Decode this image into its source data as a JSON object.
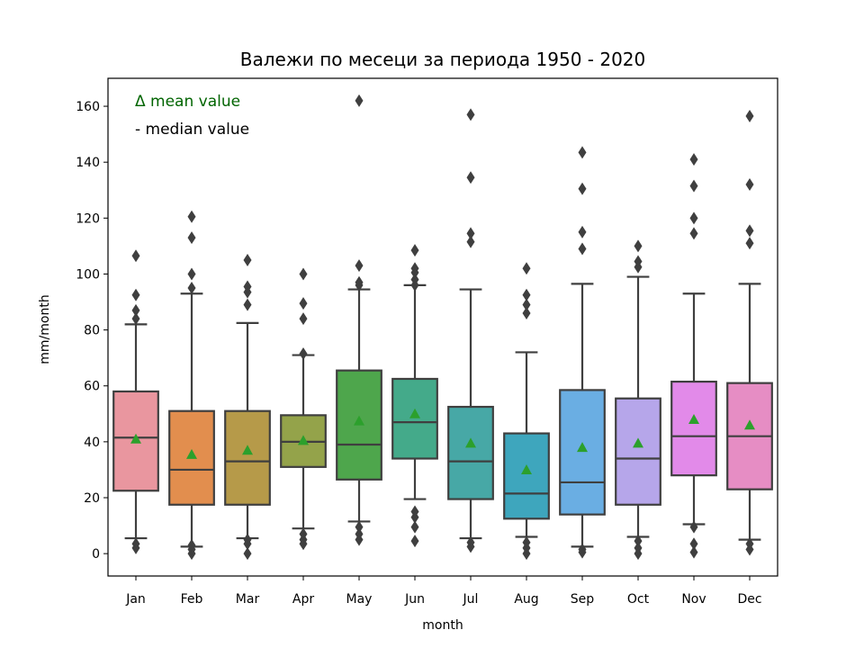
{
  "chart_data": {
    "type": "boxplot",
    "title": "Валежи по месеци за периода 1950 - 2020",
    "xlabel": "month",
    "ylabel": "mm/month",
    "ylim": [
      -8,
      170
    ],
    "yticks": [
      0,
      20,
      40,
      60,
      80,
      100,
      120,
      140,
      160
    ],
    "grid": false,
    "categories": [
      "Jan",
      "Feb",
      "Mar",
      "Apr",
      "May",
      "Jun",
      "Jul",
      "Aug",
      "Sep",
      "Oct",
      "Nov",
      "Dec"
    ],
    "box_colors": [
      "#e9969f",
      "#e28e4e",
      "#b69a49",
      "#94a34a",
      "#4ea64c",
      "#44aa8a",
      "#47a8a6",
      "#3ea6bd",
      "#6aaee3",
      "#b6a6ea",
      "#e28ae9",
      "#e68dc4"
    ],
    "mean_color": "#2ca02c",
    "line_color": "#3f3f3f",
    "boxes": [
      {
        "q1": 22.5,
        "median": 41.5,
        "q3": 58,
        "whisker_low": 5.5,
        "whisker_high": 82,
        "mean": 41,
        "outliers": [
          2,
          3.5,
          84,
          87,
          92.5,
          106.5
        ]
      },
      {
        "q1": 17.5,
        "median": 30,
        "q3": 51,
        "whisker_low": 2.5,
        "whisker_high": 93,
        "mean": 35.5,
        "outliers": [
          0,
          1.5,
          3,
          95,
          100,
          113,
          120.5
        ]
      },
      {
        "q1": 17.5,
        "median": 33,
        "q3": 51,
        "whisker_low": 5.5,
        "whisker_high": 82.5,
        "mean": 37,
        "outliers": [
          0,
          3.5,
          5,
          89,
          93.5,
          95.5,
          105
        ]
      },
      {
        "q1": 31,
        "median": 40,
        "q3": 49.5,
        "whisker_low": 9,
        "whisker_high": 71,
        "mean": 40.5,
        "outliers": [
          3.5,
          5,
          7,
          71.5,
          84,
          89.5,
          100
        ]
      },
      {
        "q1": 26.5,
        "median": 39,
        "q3": 65.5,
        "whisker_low": 11.5,
        "whisker_high": 94.5,
        "mean": 47.5,
        "outliers": [
          5,
          7,
          9.5,
          96,
          97,
          103,
          162
        ]
      },
      {
        "q1": 34,
        "median": 47,
        "q3": 62.5,
        "whisker_low": 19.5,
        "whisker_high": 96,
        "mean": 50,
        "outliers": [
          4.5,
          9.5,
          13,
          15,
          96,
          98,
          100.5,
          102,
          108.5
        ]
      },
      {
        "q1": 19.5,
        "median": 33,
        "q3": 52.5,
        "whisker_low": 5.5,
        "whisker_high": 94.5,
        "mean": 39.5,
        "outliers": [
          2.5,
          4,
          111.5,
          114.5,
          134.5,
          157
        ]
      },
      {
        "q1": 12.5,
        "median": 21.5,
        "q3": 43,
        "whisker_low": 6,
        "whisker_high": 72,
        "mean": 30,
        "outliers": [
          0,
          2,
          4,
          86,
          89,
          92.5,
          102
        ]
      },
      {
        "q1": 14,
        "median": 25.5,
        "q3": 58.5,
        "whisker_low": 2.5,
        "whisker_high": 96.5,
        "mean": 38,
        "outliers": [
          0.5,
          1.5,
          109,
          115,
          130.5,
          143.5
        ]
      },
      {
        "q1": 17.5,
        "median": 34,
        "q3": 55.5,
        "whisker_low": 6,
        "whisker_high": 99,
        "mean": 39.5,
        "outliers": [
          0,
          2,
          4.5,
          102.5,
          104.5,
          110
        ]
      },
      {
        "q1": 28,
        "median": 42,
        "q3": 61.5,
        "whisker_low": 10.5,
        "whisker_high": 93,
        "mean": 48,
        "outliers": [
          0.5,
          3.5,
          9.5,
          114.5,
          120,
          131.5,
          141
        ]
      },
      {
        "q1": 23,
        "median": 42,
        "q3": 61,
        "whisker_low": 5,
        "whisker_high": 96.5,
        "mean": 46,
        "outliers": [
          1.5,
          3.5,
          111,
          115.5,
          132,
          156.5
        ]
      }
    ],
    "annotations": [
      {
        "text": "Δ mean value",
        "color": "#006400"
      },
      {
        "text": "- median value",
        "color": "#000000"
      }
    ]
  }
}
